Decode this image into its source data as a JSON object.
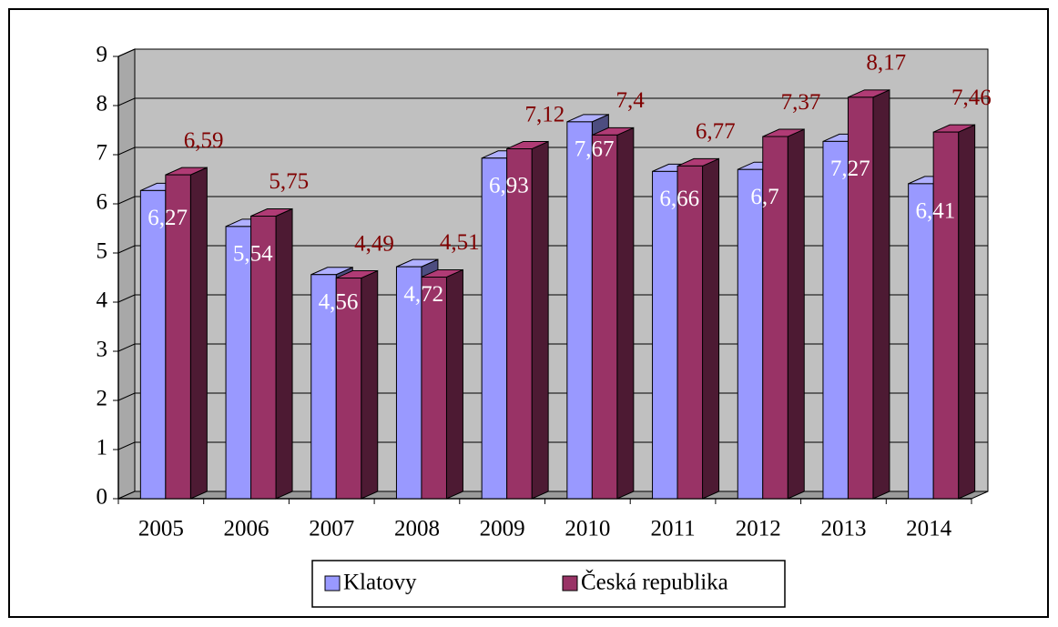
{
  "chart_data": {
    "type": "bar3d",
    "categories": [
      "2005",
      "2006",
      "2007",
      "2008",
      "2009",
      "2010",
      "2011",
      "2012",
      "2013",
      "2014"
    ],
    "series": [
      {
        "name": "Klatovy",
        "color": "#9999ff",
        "values": [
          6.27,
          5.54,
          4.56,
          4.72,
          6.93,
          7.67,
          6.66,
          6.7,
          7.27,
          6.41
        ],
        "value_labels": [
          "6,27",
          "5,54",
          "4,56",
          "4,72",
          "6,93",
          "7,67",
          "6,66",
          "6,7",
          "7,27",
          "6,41"
        ],
        "label_color": "#ffffff"
      },
      {
        "name": "Česká republika",
        "color": "#993366",
        "values": [
          6.59,
          5.75,
          4.49,
          4.51,
          7.12,
          7.4,
          6.77,
          7.37,
          8.17,
          7.46
        ],
        "value_labels": [
          "6,59",
          "5,75",
          "4,49",
          "4,51",
          "7,12",
          "7,4",
          "6,77",
          "7,37",
          "8,17",
          "7,46"
        ],
        "label_color": "#800000"
      }
    ],
    "ylim": [
      0,
      9
    ],
    "yticks": [
      0,
      1,
      2,
      3,
      4,
      5,
      6,
      7,
      8,
      9
    ],
    "grid": true,
    "legend": "bottom"
  }
}
